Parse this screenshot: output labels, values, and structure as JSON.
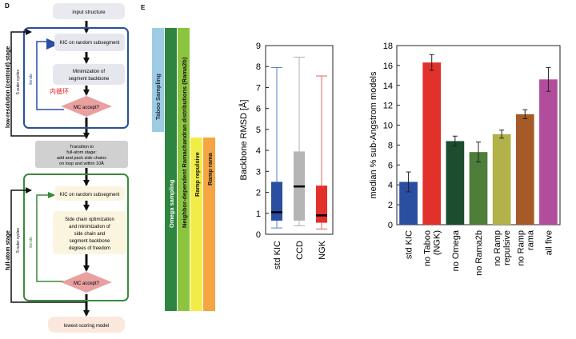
{
  "panel_d": {
    "label": "D",
    "nodes": {
      "input": "input structure",
      "kic1": "KIC on random subsegment",
      "min1_line1": "Minimization of",
      "min1_line2": "segment backbone",
      "inner_loop": "内循环",
      "mc1": "MC accept?",
      "transition_line1": "Transition to",
      "transition_line2": "full-atom stage:",
      "transition_line3": "add and pack side chains",
      "transition_line4": "on loop and within 10Å",
      "kic2": "KIC on random subsegment",
      "opt_line1": "Side chain optimization",
      "opt_line2": "and minimization of",
      "opt_line3": "side chain and",
      "opt_line4": "segment backbone",
      "opt_line5": "degrees of freedom",
      "mc2": "MC accept?",
      "output": "lowest-scoring model"
    },
    "stages": {
      "low": "low-resolution (centroid) stage",
      "full": "full-atom stage"
    },
    "cycles": {
      "outer1": "5 outer cycles",
      "iterate1": "iterate",
      "outer2": "5 outer cycles",
      "iterate2": "iterate"
    }
  },
  "panel_e": {
    "label": "E",
    "bars": [
      {
        "label": "Taboo Sampling",
        "color": "#9ccbe3"
      },
      {
        "label": "Omega sampling",
        "color": "#2e8540"
      },
      {
        "label": "Neighbor-dependent Ramachandran distributions (Rama2b)",
        "color": "#8bc540"
      },
      {
        "label": "Ramp repulsive",
        "color": "#f2ec4a"
      },
      {
        "label": "Ramp rama",
        "color": "#f5a542"
      }
    ]
  },
  "chart_data": [
    {
      "type": "box",
      "title": "",
      "ylabel": "Backbone RMSD [Å]",
      "xlabel": "",
      "ylim": [
        0,
        9
      ],
      "yticks": [
        "0",
        "1",
        "2",
        "3",
        "4",
        "5",
        "6",
        "7",
        "8",
        "9"
      ],
      "categories": [
        "std KIC",
        "CCD",
        "NGK"
      ],
      "colors": [
        "#2a4ea0",
        "#b5b5b5",
        "#e2302a"
      ],
      "whisker_colors": [
        "#5a7bd0",
        "#b0b0b0",
        "#e06060"
      ],
      "boxes": [
        {
          "min": 0.3,
          "q1": 0.65,
          "median": 1.05,
          "q3": 2.5,
          "max": 7.95
        },
        {
          "min": 0.4,
          "q1": 0.65,
          "median": 2.28,
          "q3": 3.95,
          "max": 8.45
        },
        {
          "min": 0.25,
          "q1": 0.55,
          "median": 0.9,
          "q3": 2.32,
          "max": 7.55
        }
      ]
    },
    {
      "type": "bar",
      "title": "",
      "ylabel": "median % sub-Angstrom models",
      "xlabel": "",
      "ylim": [
        0,
        18
      ],
      "yticks": [
        "0",
        "2",
        "4",
        "6",
        "8",
        "10",
        "12",
        "14",
        "16",
        "18"
      ],
      "categories": [
        "std KIC",
        "no Taboo (NGK)",
        "no Omega",
        "no Rama2b",
        "no Ramp repulsive",
        "no Ramp rama",
        "all five"
      ],
      "tick_labels": [
        [
          "std KIC"
        ],
        [
          "no Taboo",
          "(NGK)"
        ],
        [
          "no Omega"
        ],
        [
          "no Rama2b"
        ],
        [
          "no Ramp",
          "repulsive"
        ],
        [
          "no Ramp",
          "rama"
        ],
        [
          "all five"
        ]
      ],
      "values": [
        4.3,
        16.3,
        8.4,
        7.3,
        9.1,
        11.1,
        14.6
      ],
      "errors": [
        1.0,
        0.8,
        0.5,
        1.0,
        0.4,
        0.45,
        1.2
      ],
      "colors": [
        "#2a4ea0",
        "#e2302a",
        "#1b4d2e",
        "#4e7e3a",
        "#b2b24a",
        "#a65a28",
        "#b24d9e"
      ]
    }
  ]
}
